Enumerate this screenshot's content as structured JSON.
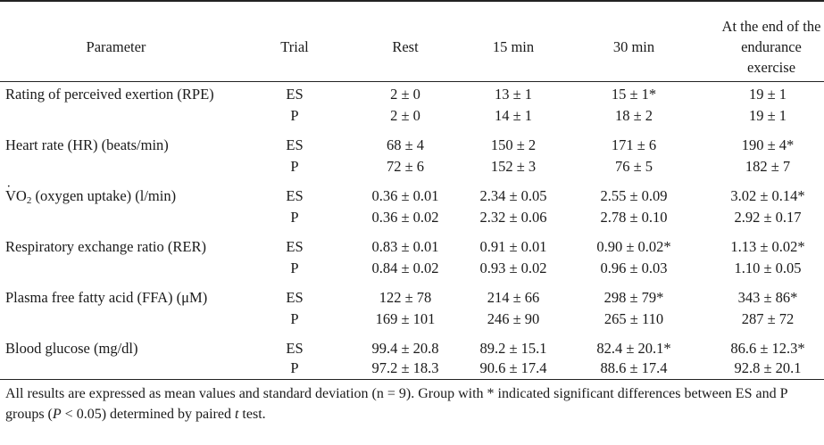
{
  "header": {
    "parameter": "Parameter",
    "trial": "Trial",
    "rest": "Rest",
    "min15": "15 min",
    "min30": "30 min",
    "end": "At the end of the endurance exercise"
  },
  "rows": [
    {
      "parameter": "Rating of perceived exertion (RPE)",
      "trial": "ES",
      "rest": "2 ± 0",
      "min15": "13 ± 1",
      "min30": "15 ± 1*",
      "end": "19 ± 1"
    },
    {
      "parameter": "",
      "trial": "P",
      "rest": "2 ± 0",
      "min15": "14 ± 1",
      "min30": "18 ± 2",
      "end": "19 ± 1"
    },
    {
      "parameter": "Heart rate (HR) (beats/min)",
      "trial": "ES",
      "rest": "68 ± 4",
      "min15": "150 ± 2",
      "min30": "171 ± 6",
      "end": "190 ± 4*"
    },
    {
      "parameter": "",
      "trial": "P",
      "rest": "72 ± 6",
      "min15": "152 ± 3",
      "min30": "76 ± 5",
      "end": "182 ± 7"
    },
    {
      "parameter_v": "V",
      "parameter_o2": "O",
      "parameter_sub": "2",
      "parameter_rest": " (oxygen uptake) (l/min)",
      "trial": "ES",
      "rest": "0.36 ± 0.01",
      "min15": "2.34 ± 0.05",
      "min30": "2.55 ± 0.09",
      "end": "3.02 ± 0.14*"
    },
    {
      "parameter": "",
      "trial": "P",
      "rest": "0.36 ± 0.02",
      "min15": "2.32 ± 0.06",
      "min30": "2.78 ± 0.10",
      "end": "2.92 ± 0.17"
    },
    {
      "parameter": "Respiratory exchange ratio (RER)",
      "trial": "ES",
      "rest": "0.83 ± 0.01",
      "min15": "0.91 ± 0.01",
      "min30": "0.90 ± 0.02*",
      "end": "1.13 ± 0.02*"
    },
    {
      "parameter": "",
      "trial": "P",
      "rest": "0.84 ± 0.02",
      "min15": "0.93 ± 0.02",
      "min30": "0.96 ± 0.03",
      "end": "1.10 ± 0.05"
    },
    {
      "parameter": "Plasma free fatty acid (FFA) (μM)",
      "trial": "ES",
      "rest": "122 ± 78",
      "min15": "214 ± 66",
      "min30": "298 ± 79*",
      "end": "343 ± 86*"
    },
    {
      "parameter": "",
      "trial": "P",
      "rest": "169 ± 101",
      "min15": "246 ± 90",
      "min30": "265 ± 110",
      "end": "287 ± 72"
    },
    {
      "parameter": "Blood glucose (mg/dl)",
      "trial": "ES",
      "rest": "99.4 ± 20.8",
      "min15": "89.2 ± 15.1",
      "min30": "82.4 ± 20.1*",
      "end": "86.6 ± 12.3*"
    },
    {
      "parameter": "",
      "trial": "P",
      "rest": "97.2 ± 18.3",
      "min15": "90.6 ± 17.4",
      "min30": "88.6 ± 17.4",
      "end": "92.8 ± 20.1"
    }
  ],
  "footnote": {
    "part1": "All results are expressed as mean values and standard deviation (n = 9).  Group with * indicated significant differences between ES and P groups (",
    "p_italic": "P",
    "part2": " < 0.05) determined by paired ",
    "t_italic": "t",
    "part3": " test."
  }
}
